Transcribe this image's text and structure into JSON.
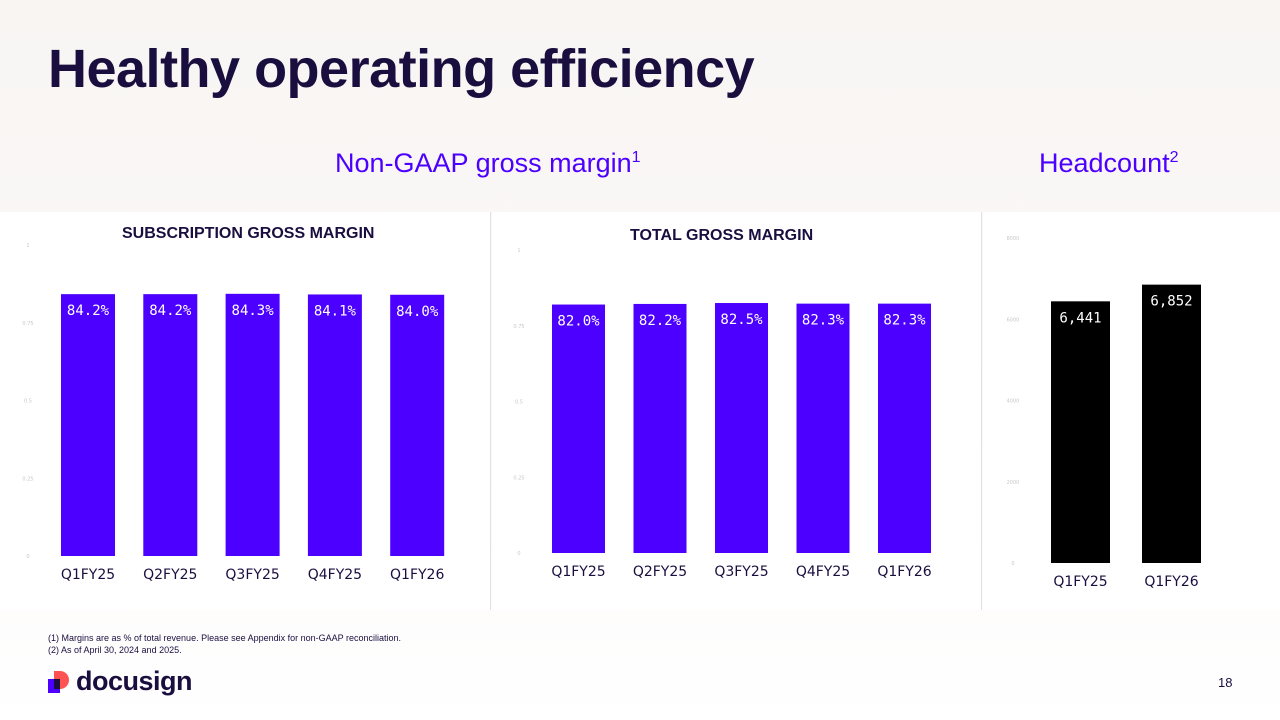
{
  "title": "Healthy operating efficiency",
  "sections": {
    "gross_margin": {
      "label": "Non-GAAP gross margin",
      "footnote_ref": "1"
    },
    "headcount": {
      "label": "Headcount",
      "footnote_ref": "2"
    }
  },
  "colors": {
    "bar_purple": "#4c00ff",
    "bar_black": "#000000",
    "ink": "#1a0e3f"
  },
  "chart_data": [
    {
      "type": "bar",
      "title": "SUBSCRIPTION GROSS MARGIN",
      "categories": [
        "Q1FY25",
        "Q2FY25",
        "Q3FY25",
        "Q4FY25",
        "Q1FY26"
      ],
      "values": [
        84.2,
        84.2,
        84.3,
        84.1,
        84.0
      ],
      "labels": [
        "84.2%",
        "84.2%",
        "84.3%",
        "84.1%",
        "84.0%"
      ],
      "ylim": [
        0,
        100
      ],
      "faint_ticks": [
        "0",
        "0.25",
        "0.5",
        "0.75",
        "1"
      ],
      "color": "#4c00ff"
    },
    {
      "type": "bar",
      "title": "TOTAL GROSS MARGIN",
      "categories": [
        "Q1FY25",
        "Q2FY25",
        "Q3FY25",
        "Q4FY25",
        "Q1FY26"
      ],
      "values": [
        82.0,
        82.2,
        82.5,
        82.3,
        82.3
      ],
      "labels": [
        "82.0%",
        "82.2%",
        "82.5%",
        "82.3%",
        "82.3%"
      ],
      "ylim": [
        0,
        100
      ],
      "faint_ticks": [
        "0",
        "0.25",
        "0.5",
        "0.75",
        "1"
      ],
      "color": "#4c00ff"
    },
    {
      "type": "bar",
      "title": "",
      "categories": [
        "Q1FY25",
        "Q1FY26"
      ],
      "values": [
        6441,
        6852
      ],
      "labels": [
        "6,441",
        "6,852"
      ],
      "ylim": [
        0,
        8000
      ],
      "faint_ticks": [
        "0",
        "2000",
        "4000",
        "6000",
        "8000"
      ],
      "color": "#000000"
    }
  ],
  "footnotes": [
    "(1) Margins are as % of total revenue. Please see Appendix for non-GAAP reconciliation.",
    "(2) As of April 30, 2024 and 2025."
  ],
  "logo_text": "docusign",
  "page_number": "18"
}
